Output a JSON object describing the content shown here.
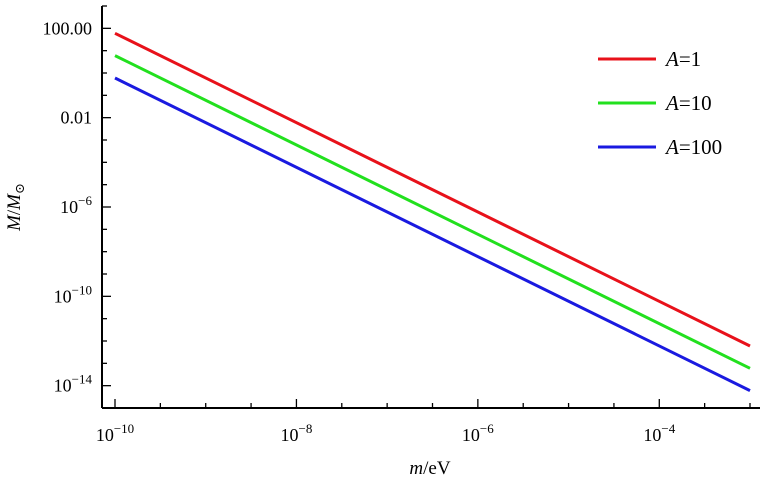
{
  "chart_data": {
    "type": "line",
    "x_scale": "log",
    "y_scale": "log",
    "xlabel": "m/eV",
    "ylabel": "M/M⊙",
    "xlim": [
      1e-10,
      0.001
    ],
    "ylim": [
      1e-15,
      1000
    ],
    "x_ticks": [
      {
        "value": 1e-10,
        "label": "10",
        "exp": "−10"
      },
      {
        "value": 1e-08,
        "label": "10",
        "exp": "−8"
      },
      {
        "value": 1e-06,
        "label": "10",
        "exp": "−6"
      },
      {
        "value": 0.0001,
        "label": "10",
        "exp": "−4"
      }
    ],
    "y_ticks": [
      {
        "value": 100,
        "label": "100.00",
        "exp": ""
      },
      {
        "value": 0.01,
        "label": "0.01",
        "exp": ""
      },
      {
        "value": 1e-06,
        "label": "10",
        "exp": "−6"
      },
      {
        "value": 1e-10,
        "label": "10",
        "exp": "−10"
      },
      {
        "value": 1e-14,
        "label": "10",
        "exp": "−14"
      }
    ],
    "series": [
      {
        "name": "A=1",
        "color": "#e8111a",
        "x": [
          1e-10,
          0.001
        ],
        "y": [
          60,
          6e-13
        ]
      },
      {
        "name": "A=10",
        "color": "#22e01e",
        "x": [
          1e-10,
          0.001
        ],
        "y": [
          6,
          6e-14
        ]
      },
      {
        "name": "A=100",
        "color": "#1a1ae0",
        "x": [
          1e-10,
          0.001
        ],
        "y": [
          0.6,
          6e-15
        ]
      }
    ],
    "grid": false,
    "legend": "top-right"
  }
}
